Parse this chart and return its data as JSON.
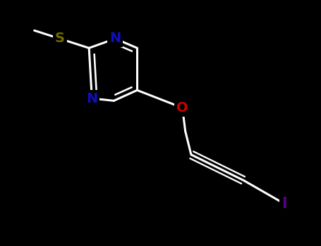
{
  "background_color": "#000000",
  "bond_color": "#1a1a1a",
  "N_color": "#1010bb",
  "S_color": "#6b6b00",
  "O_color": "#cc0000",
  "I_color": "#550088",
  "bond_width": 2.2,
  "figsize": [
    4.55,
    3.5
  ],
  "dpi": 100,
  "font_size_atoms": 14,
  "xlim": [
    0,
    455
  ],
  "ylim": [
    0,
    350
  ]
}
